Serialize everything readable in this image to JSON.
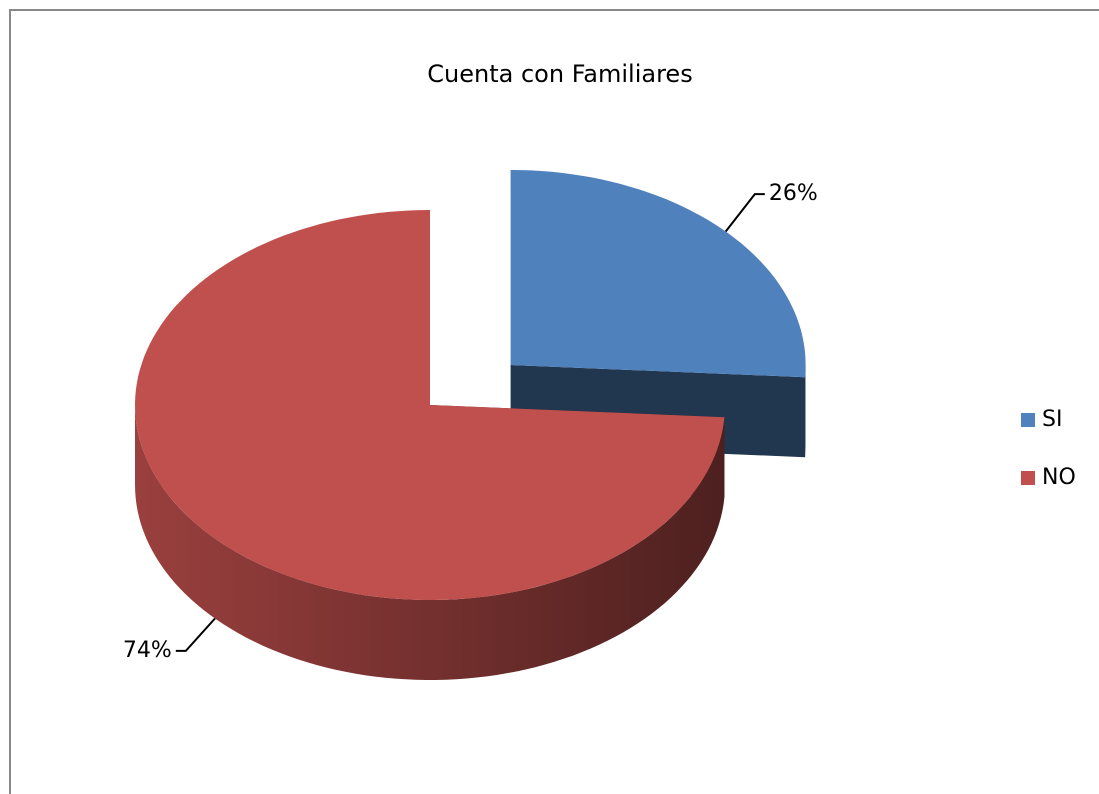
{
  "chart_data": {
    "type": "pie",
    "title": "Cuenta con Familiares",
    "categories": [
      "SI",
      "NO"
    ],
    "values": [
      26,
      74
    ],
    "value_labels": [
      "26%",
      "74%"
    ],
    "colors": [
      "#4f81bd",
      "#c0504d"
    ],
    "legend": "right",
    "exploded": [
      "SI"
    ]
  }
}
